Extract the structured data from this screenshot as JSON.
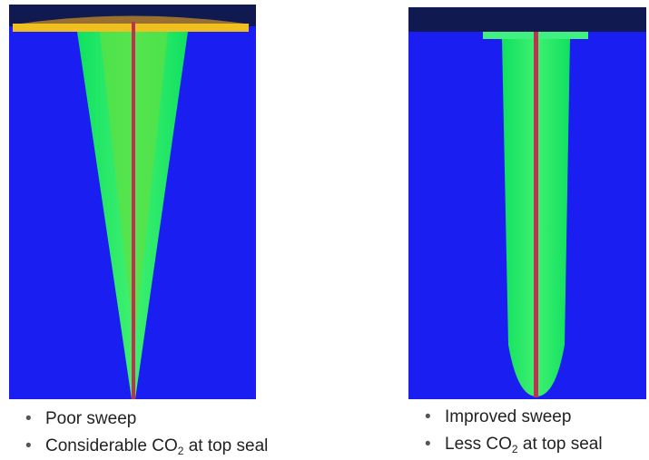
{
  "panels": [
    {
      "bullets": [
        {
          "text": "Poor sweep"
        },
        {
          "before": "Considerable CO",
          "sub": "2",
          "after": " at top seal"
        }
      ]
    },
    {
      "bullets": [
        {
          "text": "Improved sweep"
        },
        {
          "before": "Less CO",
          "sub": "2",
          "after": " at top seal"
        }
      ]
    }
  ]
}
